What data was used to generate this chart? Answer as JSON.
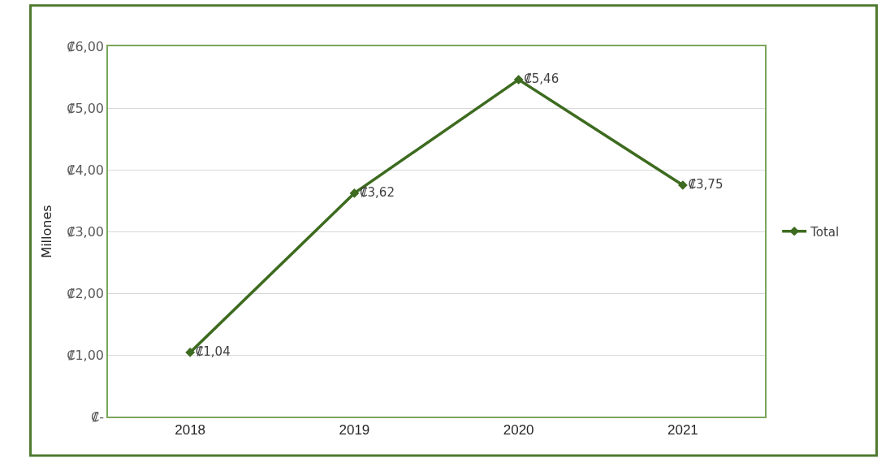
{
  "chart_data": {
    "type": "line",
    "ylabel": "Millones",
    "categories": [
      "2018",
      "2019",
      "2020",
      "2021"
    ],
    "series": [
      {
        "name": "Total",
        "color": "#3d6b1f",
        "values": [
          1.04,
          3.62,
          5.46,
          3.75
        ],
        "value_labels": [
          "₡1,04",
          "₡3,62",
          "₡5,46",
          "₡3,75"
        ]
      }
    ],
    "ylim": [
      0,
      6
    ],
    "yticks": [
      {
        "value": 0,
        "label": "₡-"
      },
      {
        "value": 1,
        "label": "₡1,00"
      },
      {
        "value": 2,
        "label": "₡2,00"
      },
      {
        "value": 3,
        "label": "₡3,00"
      },
      {
        "value": 4,
        "label": "₡4,00"
      },
      {
        "value": 5,
        "label": "₡5,00"
      },
      {
        "value": 6,
        "label": "₡6,00"
      }
    ],
    "grid": "y",
    "legend": "right",
    "marker": "diamond",
    "line_style": "solid"
  }
}
